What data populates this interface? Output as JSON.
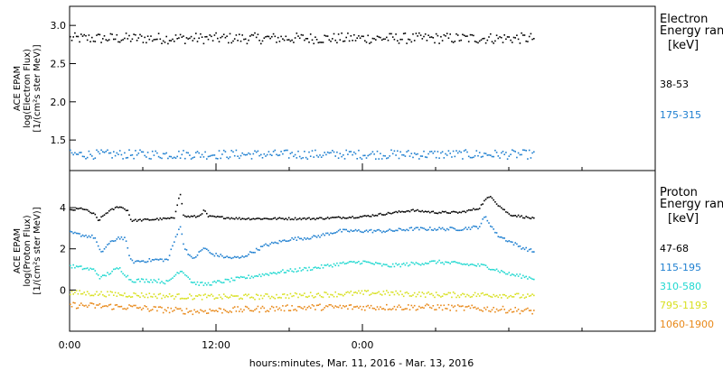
{
  "chart_data": [
    {
      "type": "scatter",
      "panel": "electron",
      "ylabel": [
        "ACE EPAM",
        "log(Electron Flux)",
        "[1/(cm²s ster MeV)]"
      ],
      "ylim": [
        1.1,
        3.25
      ],
      "yticks": [
        {
          "value": 1.5,
          "label": "1.5"
        },
        {
          "value": 2.0,
          "label": "2.0"
        },
        {
          "value": 2.5,
          "label": "2.5"
        },
        {
          "value": 3.0,
          "label": "3.0"
        }
      ],
      "legend": {
        "title": [
          "Electron",
          "Energy range",
          "[keV]"
        ],
        "entries": [
          {
            "label": "38-53",
            "color": "#000000"
          },
          {
            "label": "175-315",
            "color": "#1e7fd0"
          }
        ]
      },
      "series": [
        {
          "name": "38-53",
          "color": "#000000",
          "level": 2.84,
          "noise": 0.07
        },
        {
          "name": "175-315",
          "color": "#1e7fd0",
          "level": 1.32,
          "noise": 0.06
        }
      ]
    },
    {
      "type": "scatter",
      "panel": "proton",
      "ylabel": [
        "ACE EPAM",
        "log(Proton Flux)",
        "[1/(cm²s ster MeV)]"
      ],
      "ylim": [
        -2.0,
        5.8
      ],
      "yticks": [
        {
          "value": 0,
          "label": "0"
        },
        {
          "value": 2,
          "label": "2"
        },
        {
          "value": 4,
          "label": "4"
        }
      ],
      "legend": {
        "title": [
          "Proton",
          "Energy range",
          "[keV]"
        ],
        "entries": [
          {
            "label": "47-68",
            "color": "#000000"
          },
          {
            "label": "115-195",
            "color": "#1e7fd0"
          },
          {
            "label": "310-580",
            "color": "#20d8d0"
          },
          {
            "label": "795-1193",
            "color": "#d8e020"
          },
          {
            "label": "1060-1900",
            "color": "#e88818"
          }
        ]
      },
      "series": [
        {
          "name": "47-68",
          "color": "#000000",
          "noise": 0.05,
          "profile": [
            [
              0,
              3.9
            ],
            [
              1,
              4.0
            ],
            [
              2,
              3.7
            ],
            [
              2.3,
              3.4
            ],
            [
              3,
              3.8
            ],
            [
              4,
              4.1
            ],
            [
              4.7,
              3.9
            ],
            [
              5,
              3.4
            ],
            [
              8,
              3.5
            ],
            [
              8.5,
              3.5
            ],
            [
              9,
              4.8
            ],
            [
              9.3,
              3.6
            ],
            [
              10.5,
              3.6
            ],
            [
              11,
              3.9
            ],
            [
              11.3,
              3.6
            ],
            [
              14,
              3.5
            ],
            [
              20,
              3.5
            ],
            [
              24,
              3.6
            ],
            [
              28,
              3.9
            ],
            [
              30,
              3.8
            ],
            [
              32,
              3.8
            ],
            [
              33.5,
              4.0
            ],
            [
              34,
              4.4
            ],
            [
              34.5,
              4.6
            ],
            [
              35,
              4.2
            ],
            [
              36,
              3.7
            ],
            [
              38,
              3.5
            ]
          ]
        },
        {
          "name": "115-195",
          "color": "#1e7fd0",
          "noise": 0.08,
          "profile": [
            [
              0,
              2.8
            ],
            [
              1,
              2.7
            ],
            [
              2,
              2.6
            ],
            [
              2.5,
              1.8
            ],
            [
              3,
              2.2
            ],
            [
              4,
              2.6
            ],
            [
              4.5,
              2.5
            ],
            [
              5,
              1.4
            ],
            [
              7,
              1.5
            ],
            [
              8,
              1.5
            ],
            [
              9,
              3.2
            ],
            [
              9.3,
              2.2
            ],
            [
              10,
              1.5
            ],
            [
              11,
              2.1
            ],
            [
              11.5,
              1.8
            ],
            [
              13,
              1.6
            ],
            [
              14,
              1.6
            ],
            [
              15,
              1.9
            ],
            [
              16,
              2.2
            ],
            [
              18,
              2.5
            ],
            [
              20,
              2.6
            ],
            [
              22,
              2.9
            ],
            [
              24,
              2.9
            ],
            [
              26,
              2.9
            ],
            [
              28,
              3.0
            ],
            [
              30,
              3.0
            ],
            [
              32,
              3.0
            ],
            [
              33.5,
              3.1
            ],
            [
              34,
              3.6
            ],
            [
              35,
              2.7
            ],
            [
              36,
              2.4
            ],
            [
              37,
              2.1
            ],
            [
              38,
              1.9
            ]
          ]
        },
        {
          "name": "310-580",
          "color": "#20d8d0",
          "noise": 0.09,
          "profile": [
            [
              0,
              1.2
            ],
            [
              1,
              1.1
            ],
            [
              2,
              1.0
            ],
            [
              2.5,
              0.6
            ],
            [
              3,
              0.8
            ],
            [
              4,
              1.1
            ],
            [
              5,
              0.5
            ],
            [
              7,
              0.5
            ],
            [
              8,
              0.4
            ],
            [
              9,
              1.0
            ],
            [
              9.5,
              0.8
            ],
            [
              10,
              0.4
            ],
            [
              11,
              0.3
            ],
            [
              13,
              0.5
            ],
            [
              15,
              0.7
            ],
            [
              17,
              0.9
            ],
            [
              20,
              1.1
            ],
            [
              22,
              1.3
            ],
            [
              24,
              1.4
            ],
            [
              26,
              1.2
            ],
            [
              28,
              1.3
            ],
            [
              30,
              1.4
            ],
            [
              32,
              1.3
            ],
            [
              34,
              1.2
            ],
            [
              36,
              0.8
            ],
            [
              38,
              0.6
            ]
          ]
        },
        {
          "name": "795-1193",
          "color": "#d8e020",
          "noise": 0.13,
          "profile": [
            [
              0,
              -0.1
            ],
            [
              5,
              -0.2
            ],
            [
              10,
              -0.3
            ],
            [
              15,
              -0.3
            ],
            [
              20,
              -0.2
            ],
            [
              25,
              -0.1
            ],
            [
              30,
              -0.2
            ],
            [
              35,
              -0.2
            ],
            [
              38,
              -0.3
            ]
          ]
        },
        {
          "name": "1060-1900",
          "color": "#e88818",
          "noise": 0.15,
          "profile": [
            [
              0,
              -0.7
            ],
            [
              5,
              -0.8
            ],
            [
              7,
              -0.9
            ],
            [
              10,
              -1.0
            ],
            [
              15,
              -0.9
            ],
            [
              20,
              -0.8
            ],
            [
              25,
              -0.8
            ],
            [
              30,
              -0.8
            ],
            [
              35,
              -0.9
            ],
            [
              38,
              -1.0
            ]
          ]
        }
      ]
    }
  ],
  "xaxis": {
    "label": "hours:minutes, Mar. 11, 2016 - Mar. 13, 2016",
    "range": [
      0,
      48
    ],
    "data_end": 38,
    "ticks": [
      {
        "value": 0,
        "label": "0:00"
      },
      {
        "value": 12,
        "label": "12:00"
      },
      {
        "value": 24,
        "label": "0:00"
      }
    ],
    "minor_step": 6
  }
}
